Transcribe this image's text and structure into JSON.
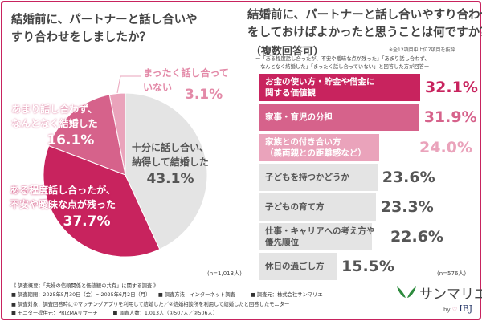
{
  "left_question": [
    "結婚前に、パートナーと話し合いや",
    "すり合わせをしましたか？"
  ],
  "right_question": [
    "結婚前に、パートナーと話し合いやすり合わせ",
    "をしておけばよかったと思うことは何ですか？"
  ],
  "multiple_answer": "（複数回答可）",
  "note": "※全12項目中上位7項目を抜粋",
  "condition": [
    "ー「ある程度話し合ったが、不安や曖昧な点が残った」「あまり話し合わず、",
    "なんとなく結婚した」「まったく話し合っていない」と回答した方が回答ー"
  ],
  "colors": {
    "dark": "#c8235e",
    "medium": "#d6628b",
    "light": "#eaa3bb",
    "grey": "#e4e4e4",
    "frame": "#c8235e"
  },
  "chart_data": [
    {
      "type": "pie",
      "start": "12 o'clock",
      "direction": "clockwise",
      "slices": [
        {
          "label": "十分に話し合い、納得して結婚した",
          "label_lines": [
            "十分に話し合い、",
            "納得して結婚した"
          ],
          "value": 43.1,
          "display": "43.1%",
          "color": "#e4e4e4"
        },
        {
          "label": "ある程度話し合ったが、不安や曖昧な点が残った",
          "label_lines": [
            "ある程度話し合ったが、",
            "不安や曖昧な点が残った"
          ],
          "value": 37.7,
          "display": "37.7%",
          "color": "#c8235e"
        },
        {
          "label": "あまり話し合わず、なんとなく結婚した",
          "label_lines": [
            "あまり話し合わず、",
            "なんとなく結婚した"
          ],
          "value": 16.1,
          "display": "16.1%",
          "color": "#d6628b"
        },
        {
          "label": "まったく話し合っていない",
          "label_lines": [
            "まったく話し合って",
            "いない"
          ],
          "value": 3.1,
          "display": "3.1%",
          "color": "#eaa3bb"
        }
      ],
      "n": "(n=1,013人)"
    },
    {
      "type": "bar",
      "orientation": "horizontal",
      "categories": [
        [
          "お金の使い方・貯金や借金に",
          "関する価値観"
        ],
        [
          "家事・育児の分担"
        ],
        [
          "家族との付き合い方",
          "（義両親との距離感など）"
        ],
        [
          "子どもを持つかどうか"
        ],
        [
          "子どもの育て方"
        ],
        [
          "仕事・キャリアへの考え方や",
          "優先順位"
        ],
        [
          "休日の過ごし方"
        ]
      ],
      "values": [
        32.1,
        31.9,
        24.0,
        23.6,
        23.3,
        22.6,
        15.5
      ],
      "display": [
        "32.1%",
        "31.9%",
        "24.0%",
        "23.6%",
        "23.3%",
        "22.6%",
        "15.5%"
      ],
      "bar_colors": [
        "#c8235e",
        "#d6628b",
        "#eaa3bb",
        "#e4e4e4",
        "#e4e4e4",
        "#e4e4e4",
        "#e4e4e4"
      ],
      "label_colors": [
        "#fff",
        "#fff",
        "#fff",
        "#555",
        "#555",
        "#555",
        "#555"
      ],
      "value_colors": [
        "#c8235e",
        "#d6628b",
        "#eaa3bb",
        "#555",
        "#555",
        "#555",
        "#555"
      ],
      "n": "(n=576人)"
    }
  ],
  "footer": [
    "《 調査概要：「夫婦の信頼関係と価値観の共有」に関する調査 》",
    "■ 調査期間：2025年5月30日（金）〜2025年6月2日（月）　　■ 調査方法：インターネット調査　　　■ 調査元：株式会社サンマリエ",
    "■ 調査対象：調査回答時に①マッチングアプリを利用して結婚した／②結婚相談所を利用して結婚したと回答したモニター",
    "■ モニター提供元：PRIZMAリサーチ　　　■ 調査人数：1,013人（①507人／②506人）"
  ],
  "logo": {
    "name": "サンマリエ",
    "by": "by",
    "brand": "IBJ"
  }
}
